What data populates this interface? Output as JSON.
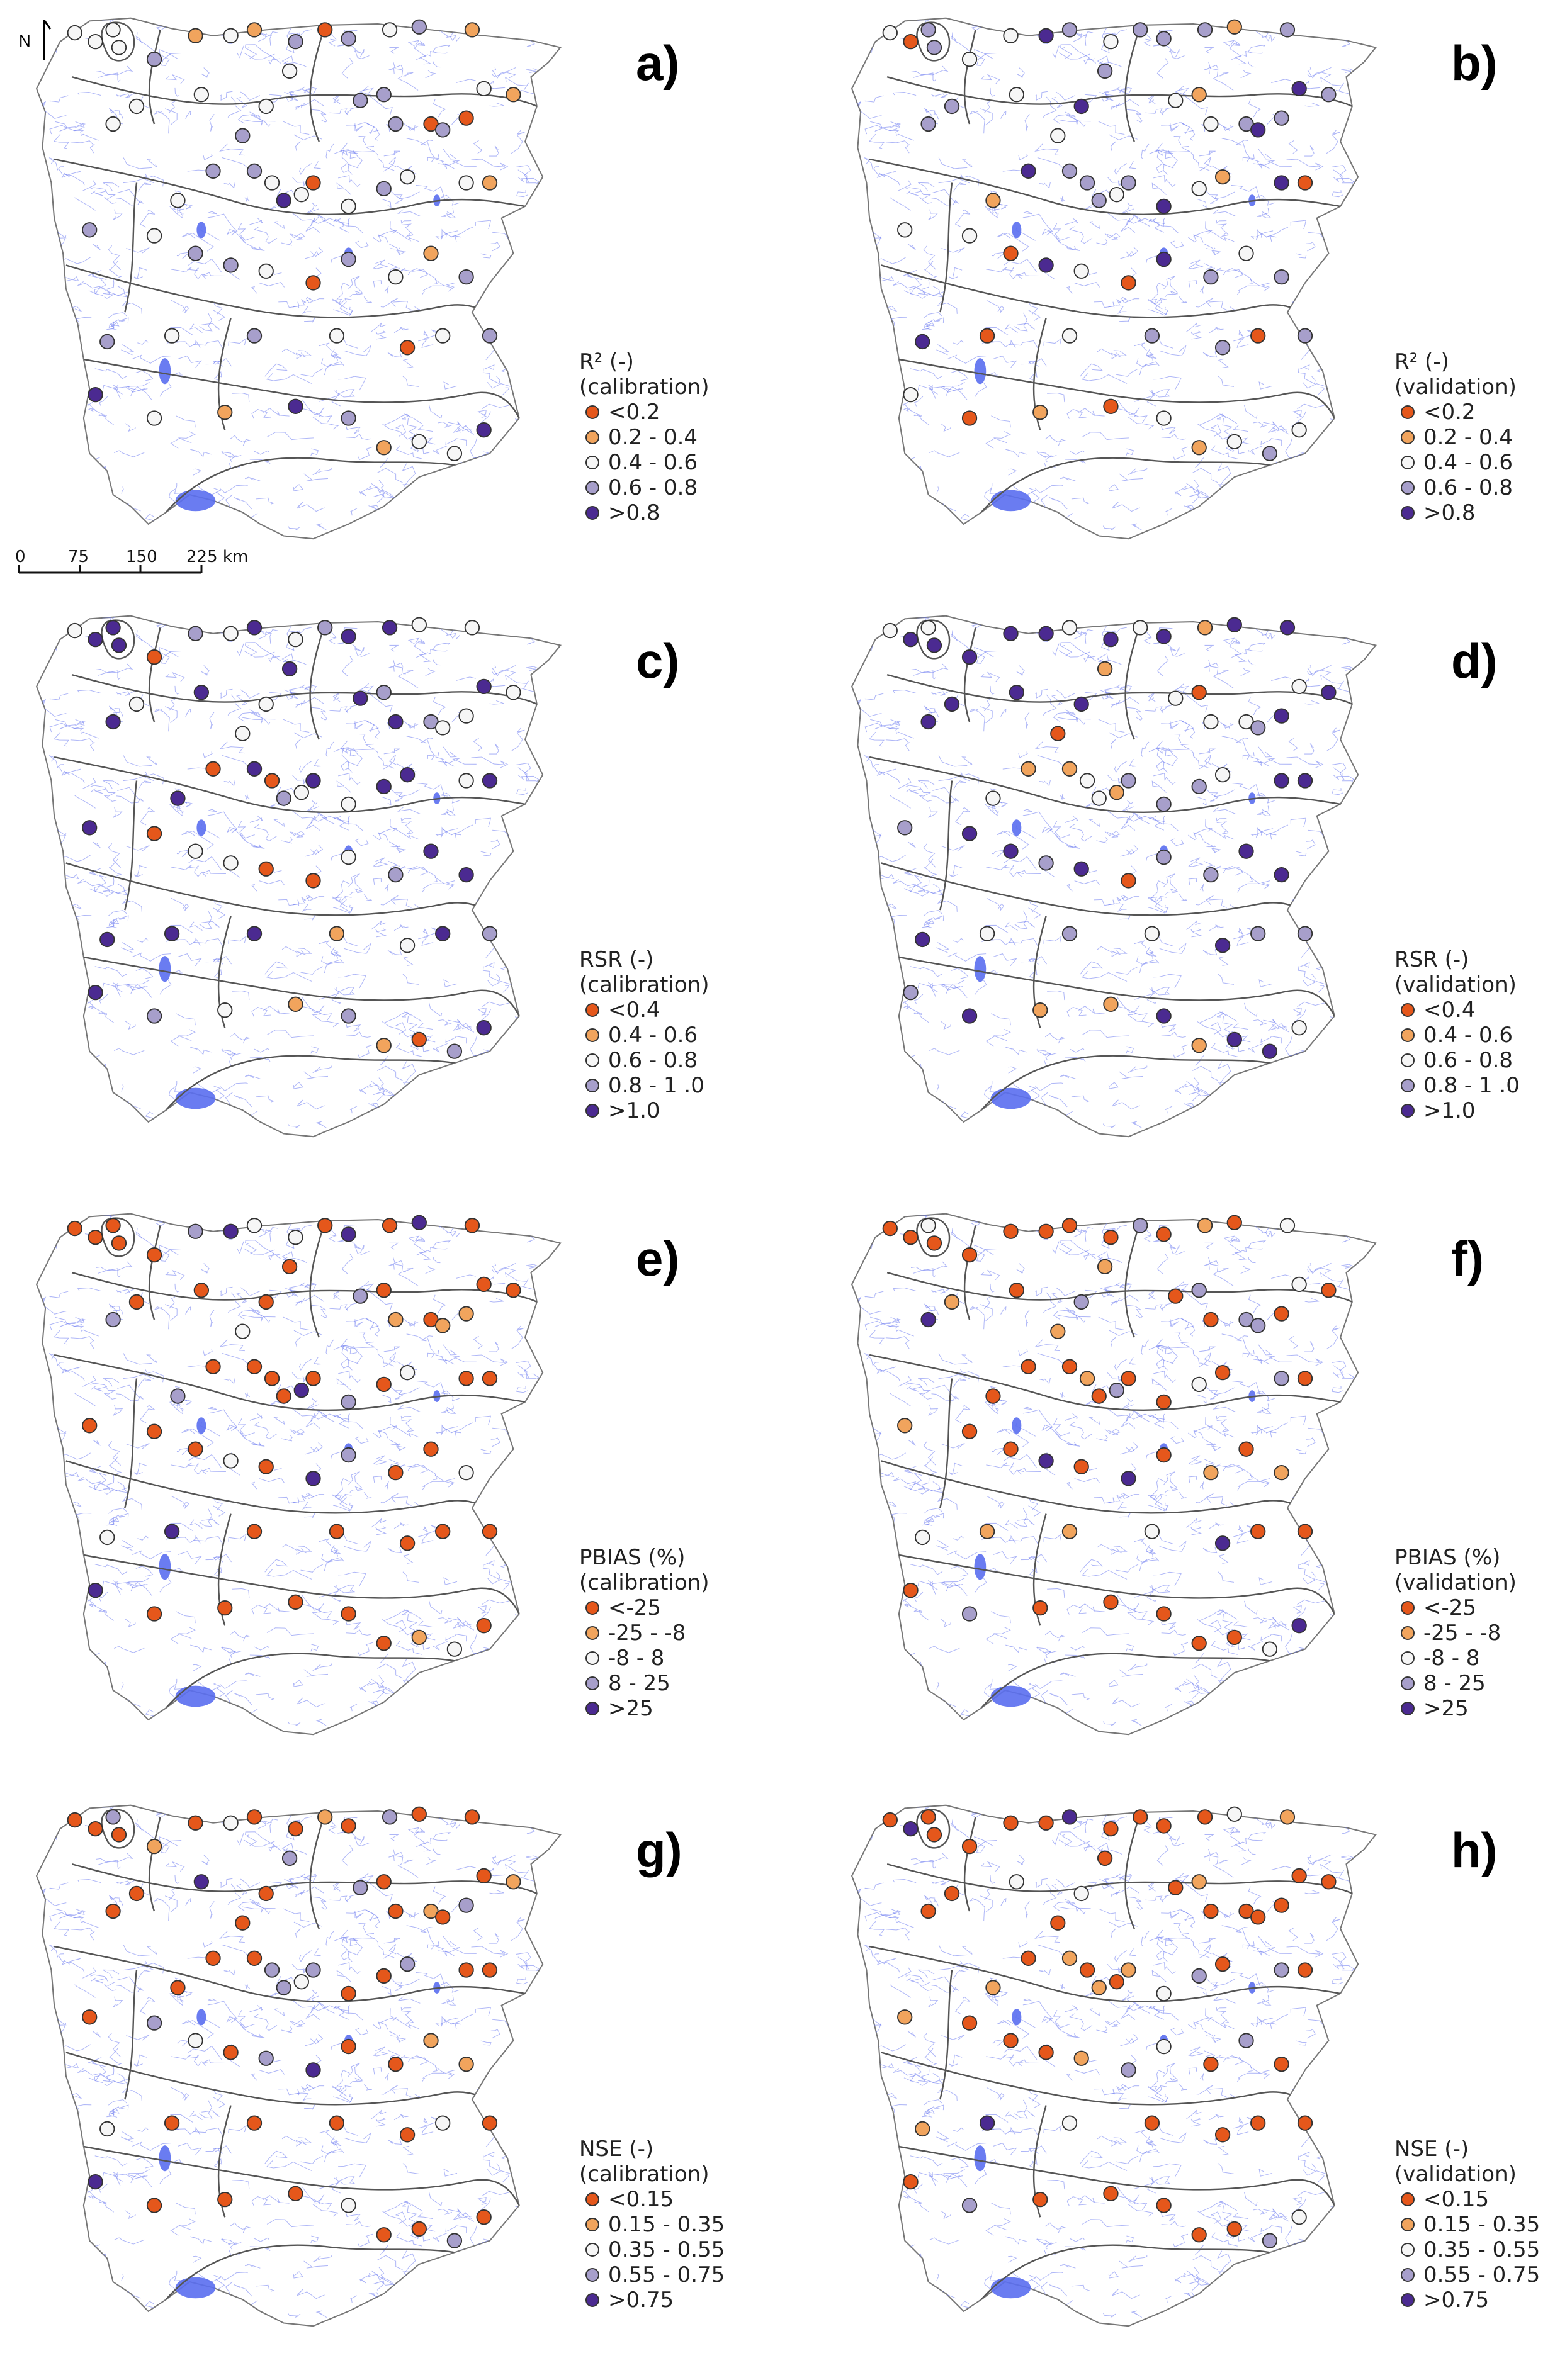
{
  "colors": {
    "c1": "#e5571b",
    "c2": "#f1a45d",
    "c3": "#f6f6f6",
    "c4": "#a79fcb",
    "c5": "#4b2a91",
    "river": "#6d7cf0",
    "reservoir": "#5a6ef0",
    "basin": "#555555"
  },
  "north_label": "N",
  "scale_bar": {
    "ticks": [
      "0",
      "75",
      "150",
      "225 km"
    ]
  },
  "panels": [
    {
      "label": "a)",
      "metric": "R² (-)",
      "period": "(calibration)",
      "classes": [
        "<0.2",
        "0.2 - 0.4",
        "0.4 - 0.6",
        "0.6 - 0.8",
        ">0.8"
      ]
    },
    {
      "label": "b)",
      "metric": "R² (-)",
      "period": "(validation)",
      "classes": [
        "<0.2",
        "0.2 - 0.4",
        "0.4 - 0.6",
        "0.6 - 0.8",
        ">0.8"
      ]
    },
    {
      "label": "c)",
      "metric": "RSR (-)",
      "period": "(calibration)",
      "classes": [
        "<0.4",
        "0.4 - 0.6",
        "0.6 - 0.8",
        "0.8 - 1 .0",
        ">1.0"
      ]
    },
    {
      "label": "d)",
      "metric": "RSR (-)",
      "period": "(validation)",
      "classes": [
        "<0.4",
        "0.4 - 0.6",
        "0.6 - 0.8",
        "0.8 - 1 .0",
        ">1.0"
      ]
    },
    {
      "label": "e)",
      "metric": "PBIAS (%)",
      "period": "(calibration)",
      "classes": [
        "<-25",
        "-25 - -8",
        "-8 - 8",
        "8 - 25",
        ">25"
      ]
    },
    {
      "label": "f)",
      "metric": "PBIAS (%)",
      "period": "(validation)",
      "classes": [
        "<-25",
        "-25 - -8",
        "-8 - 8",
        "8 - 25",
        ">25"
      ]
    },
    {
      "label": "g)",
      "metric": "NSE (-)",
      "period": "(calibration)",
      "classes": [
        "<0.15",
        "0.15 - 0.35",
        "0.35 - 0.55",
        "0.55 - 0.75",
        ">0.75"
      ]
    },
    {
      "label": "h)",
      "metric": "NSE (-)",
      "period": "(validation)",
      "classes": [
        "<0.15",
        "0.15 - 0.35",
        "0.35 - 0.55",
        "0.55 - 0.75",
        ">0.75"
      ]
    }
  ]
}
